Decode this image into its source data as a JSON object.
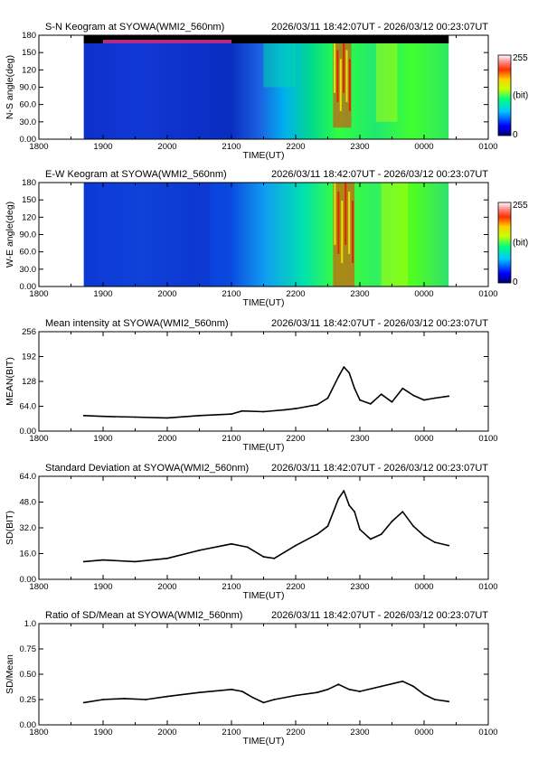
{
  "chart_data": [
    {
      "id": "ns-keogram",
      "type": "heatmap",
      "title": "S-N Keogram at SYOWA(WMI2_560nm)",
      "period": "2026/03/11 18:42:07UT - 2026/03/12 00:23:07UT",
      "xlabel": "TIME(UT)",
      "ylabel": "N-S angle(deg)",
      "x_ticks": [
        "1800",
        "1900",
        "2000",
        "2100",
        "2200",
        "2300",
        "0000",
        "0100"
      ],
      "y_ticks": [
        "0.00",
        "30.0",
        "60.0",
        "90.0",
        "120",
        "150",
        "180"
      ],
      "xlim": [
        "18:00",
        "01:00"
      ],
      "data_range_ut": [
        "18:42",
        "00:23"
      ],
      "ylim": [
        0,
        180
      ],
      "colorbar": {
        "min_label": "0",
        "max_label": "255",
        "unit_label": "(bit)"
      },
      "colormap": [
        "#000070",
        "#0000ff",
        "#00c8ff",
        "#00ff80",
        "#c8ff00",
        "#ffd000",
        "#ff3000",
        "#ff9090",
        "#ffffff"
      ],
      "features": [
        {
          "time_ut": "18:42-20:40",
          "angle_deg": "0-180",
          "level_bit": 30,
          "description_value": "low"
        },
        {
          "time_ut": "21:30-22:00",
          "angle_deg": "90-170",
          "level_bit": 110
        },
        {
          "time_ut": "22:35-22:52",
          "angle_deg": "20-170",
          "level_bit": 230
        },
        {
          "time_ut": "23:15-23:35",
          "angle_deg": "30-170",
          "level_bit": 140
        }
      ]
    },
    {
      "id": "ew-keogram",
      "type": "heatmap",
      "title": "E-W Keogram at SYOWA(WMI2_560nm)",
      "period": "2026/03/11 18:42:07UT - 2026/03/12 00:23:07UT",
      "xlabel": "TIME(UT)",
      "ylabel": "W-E angle(deg)",
      "x_ticks": [
        "1800",
        "1900",
        "2000",
        "2100",
        "2200",
        "2300",
        "0000",
        "0100"
      ],
      "y_ticks": [
        "0.00",
        "30.0",
        "60.0",
        "90.0",
        "120",
        "150",
        "180"
      ],
      "xlim": [
        "18:00",
        "01:00"
      ],
      "data_range_ut": [
        "18:42",
        "00:23"
      ],
      "ylim": [
        0,
        180
      ],
      "colorbar": {
        "min_label": "0",
        "max_label": "255",
        "unit_label": "(bit)"
      },
      "colormap": [
        "#000070",
        "#0000ff",
        "#00c8ff",
        "#00ff80",
        "#c8ff00",
        "#ffd000",
        "#ff3000",
        "#ff9090",
        "#ffffff"
      ],
      "features": [
        {
          "time_ut": "18:42-20:40",
          "angle_deg": "0-180",
          "level_bit": 40
        },
        {
          "time_ut": "22:35-22:55",
          "angle_deg": "0-180",
          "level_bit": 235
        },
        {
          "time_ut": "23:20-23:45",
          "angle_deg": "0-180",
          "level_bit": 150
        }
      ]
    },
    {
      "id": "mean",
      "type": "line",
      "title": "Mean intensity at SYOWA(WMI2_560nm)",
      "period": "2026/03/11 18:42:07UT - 2026/03/12 00:23:07UT",
      "xlabel": "TIME(UT)",
      "ylabel": "MEAN(BIT)",
      "x_ticks": [
        "1800",
        "1900",
        "2000",
        "2100",
        "2200",
        "2300",
        "0000",
        "0100"
      ],
      "y_ticks": [
        "0.00",
        "64.0",
        "128",
        "192",
        "256"
      ],
      "xlim": [
        "18:00",
        "01:00"
      ],
      "ylim": [
        0,
        256
      ],
      "x": [
        "18:42",
        "19:00",
        "19:30",
        "20:00",
        "20:30",
        "21:00",
        "21:10",
        "21:30",
        "21:50",
        "22:00",
        "22:20",
        "22:30",
        "22:40",
        "22:45",
        "22:50",
        "22:55",
        "23:00",
        "23:10",
        "23:20",
        "23:30",
        "23:40",
        "23:50",
        "00:00",
        "00:10",
        "00:23"
      ],
      "values": [
        40,
        38,
        36,
        34,
        40,
        44,
        52,
        50,
        55,
        58,
        68,
        85,
        140,
        165,
        150,
        110,
        80,
        70,
        95,
        75,
        110,
        92,
        80,
        85,
        90
      ]
    },
    {
      "id": "sd",
      "type": "line",
      "title": "Standard Deviation at SYOWA(WMI2_560nm)",
      "period": "2026/03/11 18:42:07UT - 2026/03/12 00:23:07UT",
      "xlabel": "TIME(UT)",
      "ylabel": "SD(BIT)",
      "x_ticks": [
        "1800",
        "1900",
        "2000",
        "2100",
        "2200",
        "2300",
        "0000",
        "0100"
      ],
      "y_ticks": [
        "0.00",
        "16.0",
        "32.0",
        "48.0",
        "64.0"
      ],
      "xlim": [
        "18:00",
        "01:00"
      ],
      "ylim": [
        0,
        64
      ],
      "x": [
        "18:42",
        "19:00",
        "19:30",
        "20:00",
        "20:30",
        "21:00",
        "21:15",
        "21:30",
        "21:40",
        "21:50",
        "22:00",
        "22:20",
        "22:30",
        "22:40",
        "22:45",
        "22:50",
        "22:55",
        "23:00",
        "23:10",
        "23:20",
        "23:30",
        "23:40",
        "23:50",
        "00:00",
        "00:10",
        "00:23"
      ],
      "values": [
        11,
        12,
        11,
        13,
        18,
        22,
        20,
        14,
        13,
        17,
        21,
        28,
        33,
        50,
        55,
        46,
        42,
        31,
        25,
        28,
        36,
        42,
        33,
        27,
        23,
        21
      ]
    },
    {
      "id": "ratio",
      "type": "line",
      "title": "Ratio of SD/Mean at SYOWA(WMI2_560nm)",
      "period": "2026/03/11 18:42:07UT - 2026/03/12 00:23:07UT",
      "xlabel": "TIME(UT)",
      "ylabel": "SD/Mean",
      "x_ticks": [
        "1800",
        "1900",
        "2000",
        "2100",
        "2200",
        "2300",
        "0000",
        "0100"
      ],
      "y_ticks": [
        "0.00",
        "0.25",
        "0.50",
        "0.75",
        "1.0"
      ],
      "xlim": [
        "18:00",
        "01:00"
      ],
      "ylim": [
        0,
        1
      ],
      "x": [
        "18:42",
        "19:00",
        "19:20",
        "19:40",
        "20:00",
        "20:30",
        "21:00",
        "21:10",
        "21:20",
        "21:30",
        "21:40",
        "22:00",
        "22:20",
        "22:30",
        "22:40",
        "22:50",
        "23:00",
        "23:20",
        "23:40",
        "23:50",
        "00:00",
        "00:10",
        "00:23"
      ],
      "values": [
        0.22,
        0.25,
        0.26,
        0.25,
        0.28,
        0.32,
        0.35,
        0.33,
        0.27,
        0.22,
        0.25,
        0.29,
        0.32,
        0.35,
        0.4,
        0.35,
        0.33,
        0.38,
        0.43,
        0.38,
        0.3,
        0.25,
        0.23
      ]
    }
  ]
}
